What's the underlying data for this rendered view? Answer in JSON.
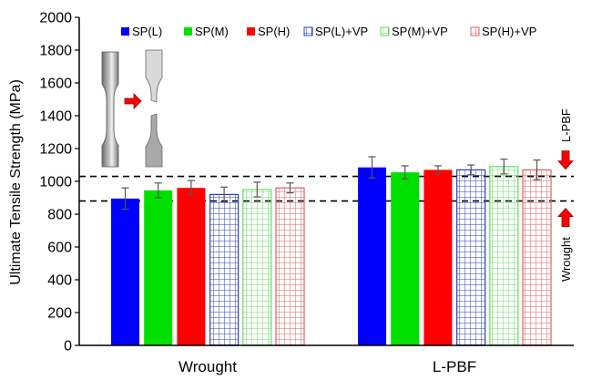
{
  "chart_data": {
    "type": "bar",
    "ylabel": "Ultimate Tensile Strength (MPa)",
    "ylim": [
      0,
      2000
    ],
    "yticks": [
      0,
      200,
      400,
      600,
      800,
      1000,
      1200,
      1400,
      1600,
      1800,
      2000
    ],
    "categories": [
      "Wrought",
      "L-PBF"
    ],
    "series": [
      {
        "name": "SP(L)",
        "color": "#0000ff",
        "fill": "solid",
        "values": [
          895,
          1085
        ],
        "errors": [
          65,
          65
        ]
      },
      {
        "name": "SP(M)",
        "color": "#00e000",
        "fill": "solid",
        "values": [
          945,
          1055
        ],
        "errors": [
          45,
          40
        ]
      },
      {
        "name": "SP(H)",
        "color": "#ff0000",
        "fill": "solid",
        "values": [
          960,
          1070
        ],
        "errors": [
          45,
          25
        ]
      },
      {
        "name": "SP(L)+VP",
        "color": "#2e3fbf",
        "fill": "grid",
        "values": [
          920,
          1070
        ],
        "errors": [
          45,
          30
        ]
      },
      {
        "name": "SP(M)+VP",
        "color": "#66dd66",
        "fill": "grid",
        "values": [
          950,
          1090
        ],
        "errors": [
          45,
          45
        ]
      },
      {
        "name": "SP(H)+VP",
        "color": "#e06060",
        "fill": "grid",
        "values": [
          960,
          1070
        ],
        "errors": [
          30,
          60
        ]
      }
    ],
    "reference_lines": [
      {
        "label": "L-PBF",
        "value": 1030,
        "arrow": "down",
        "color": "#ff0000"
      },
      {
        "label": "Wrought",
        "value": 880,
        "arrow": "up",
        "color": "#ff0000"
      }
    ],
    "legend_position": "top",
    "inset": {
      "arrow": "right",
      "arrow_color": "#ff0000"
    }
  }
}
